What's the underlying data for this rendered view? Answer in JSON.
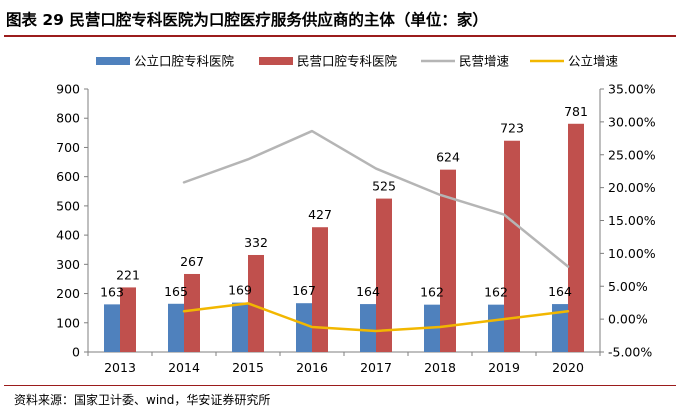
{
  "title": "图表 29 民营口腔专科医院为口腔医疗服务供应商的主体（单位：家）",
  "source": "资料来源：国家卫计委、wind，华安证券研究所",
  "chart_data": {
    "type": "bar",
    "categories": [
      "2013",
      "2014",
      "2015",
      "2016",
      "2017",
      "2018",
      "2019",
      "2020"
    ],
    "series": [
      {
        "name": "公立口腔专科医院",
        "kind": "bar",
        "axis": "left",
        "color": "#4f81bd",
        "values": [
          163,
          165,
          169,
          167,
          164,
          162,
          162,
          164
        ]
      },
      {
        "name": "民营口腔专科医院",
        "kind": "bar",
        "axis": "left",
        "color": "#c0504d",
        "values": [
          221,
          267,
          332,
          427,
          525,
          624,
          723,
          781
        ]
      },
      {
        "name": "民营增速",
        "kind": "line",
        "axis": "right",
        "color": "#b5b5b5",
        "values": [
          null,
          20.8,
          24.3,
          28.6,
          22.9,
          18.9,
          15.9,
          8.0
        ]
      },
      {
        "name": "公立增速",
        "kind": "line",
        "axis": "right",
        "color": "#f2b700",
        "values": [
          null,
          1.2,
          2.4,
          -1.2,
          -1.8,
          -1.2,
          0.0,
          1.2
        ]
      }
    ],
    "y_left": {
      "min": 0,
      "max": 900,
      "ticks": [
        "0",
        "100",
        "200",
        "300",
        "400",
        "500",
        "600",
        "700",
        "800",
        "900"
      ]
    },
    "y_right": {
      "min": -5,
      "max": 35,
      "ticks": [
        "-5.00%",
        "0.00%",
        "5.00%",
        "10.00%",
        "15.00%",
        "20.00%",
        "25.00%",
        "30.00%",
        "35.00%"
      ]
    },
    "legend_position": "top",
    "grid": false
  }
}
